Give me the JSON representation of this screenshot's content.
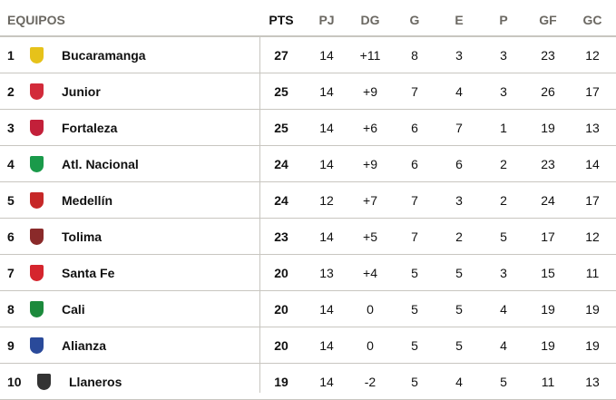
{
  "headers": {
    "team": "EQUIPOS",
    "pts": "PTS",
    "pj": "PJ",
    "dg": "DG",
    "g": "G",
    "e": "E",
    "p": "P",
    "gf": "GF",
    "gc": "GC"
  },
  "rows": [
    {
      "rank": "1",
      "team": "Bucaramanga",
      "logo": "bucaramanga-crest",
      "color": "#e6c21a",
      "pts": "27",
      "pj": "14",
      "dg": "+11",
      "g": "8",
      "e": "3",
      "p": "3",
      "gf": "23",
      "gc": "12"
    },
    {
      "rank": "2",
      "team": "Junior",
      "logo": "junior-crest",
      "color": "#d22b3a",
      "pts": "25",
      "pj": "14",
      "dg": "+9",
      "g": "7",
      "e": "4",
      "p": "3",
      "gf": "26",
      "gc": "17"
    },
    {
      "rank": "3",
      "team": "Fortaleza",
      "logo": "fortaleza-crest",
      "color": "#c3203a",
      "pts": "25",
      "pj": "14",
      "dg": "+6",
      "g": "6",
      "e": "7",
      "p": "1",
      "gf": "19",
      "gc": "13"
    },
    {
      "rank": "4",
      "team": "Atl. Nacional",
      "logo": "nacional-crest",
      "color": "#1a9a4a",
      "pts": "24",
      "pj": "14",
      "dg": "+9",
      "g": "6",
      "e": "6",
      "p": "2",
      "gf": "23",
      "gc": "14"
    },
    {
      "rank": "5",
      "team": "Medellín",
      "logo": "medellin-crest",
      "color": "#c62828",
      "pts": "24",
      "pj": "12",
      "dg": "+7",
      "g": "7",
      "e": "3",
      "p": "2",
      "gf": "24",
      "gc": "17"
    },
    {
      "rank": "6",
      "team": "Tolima",
      "logo": "tolima-crest",
      "color": "#8a2a2a",
      "pts": "23",
      "pj": "14",
      "dg": "+5",
      "g": "7",
      "e": "2",
      "p": "5",
      "gf": "17",
      "gc": "12"
    },
    {
      "rank": "7",
      "team": "Santa Fe",
      "logo": "santafe-crest",
      "color": "#d5252d",
      "pts": "20",
      "pj": "13",
      "dg": "+4",
      "g": "5",
      "e": "5",
      "p": "3",
      "gf": "15",
      "gc": "11"
    },
    {
      "rank": "8",
      "team": "Cali",
      "logo": "cali-crest",
      "color": "#1c8a3c",
      "pts": "20",
      "pj": "14",
      "dg": "0",
      "g": "5",
      "e": "5",
      "p": "4",
      "gf": "19",
      "gc": "19"
    },
    {
      "rank": "9",
      "team": "Alianza",
      "logo": "alianza-crest",
      "color": "#2a4a9a",
      "pts": "20",
      "pj": "14",
      "dg": "0",
      "g": "5",
      "e": "5",
      "p": "4",
      "gf": "19",
      "gc": "19"
    },
    {
      "rank": "10",
      "team": "Llaneros",
      "logo": "llaneros-crest",
      "color": "#333333",
      "pts": "19",
      "pj": "14",
      "dg": "-2",
      "g": "5",
      "e": "4",
      "p": "5",
      "gf": "11",
      "gc": "13"
    }
  ]
}
